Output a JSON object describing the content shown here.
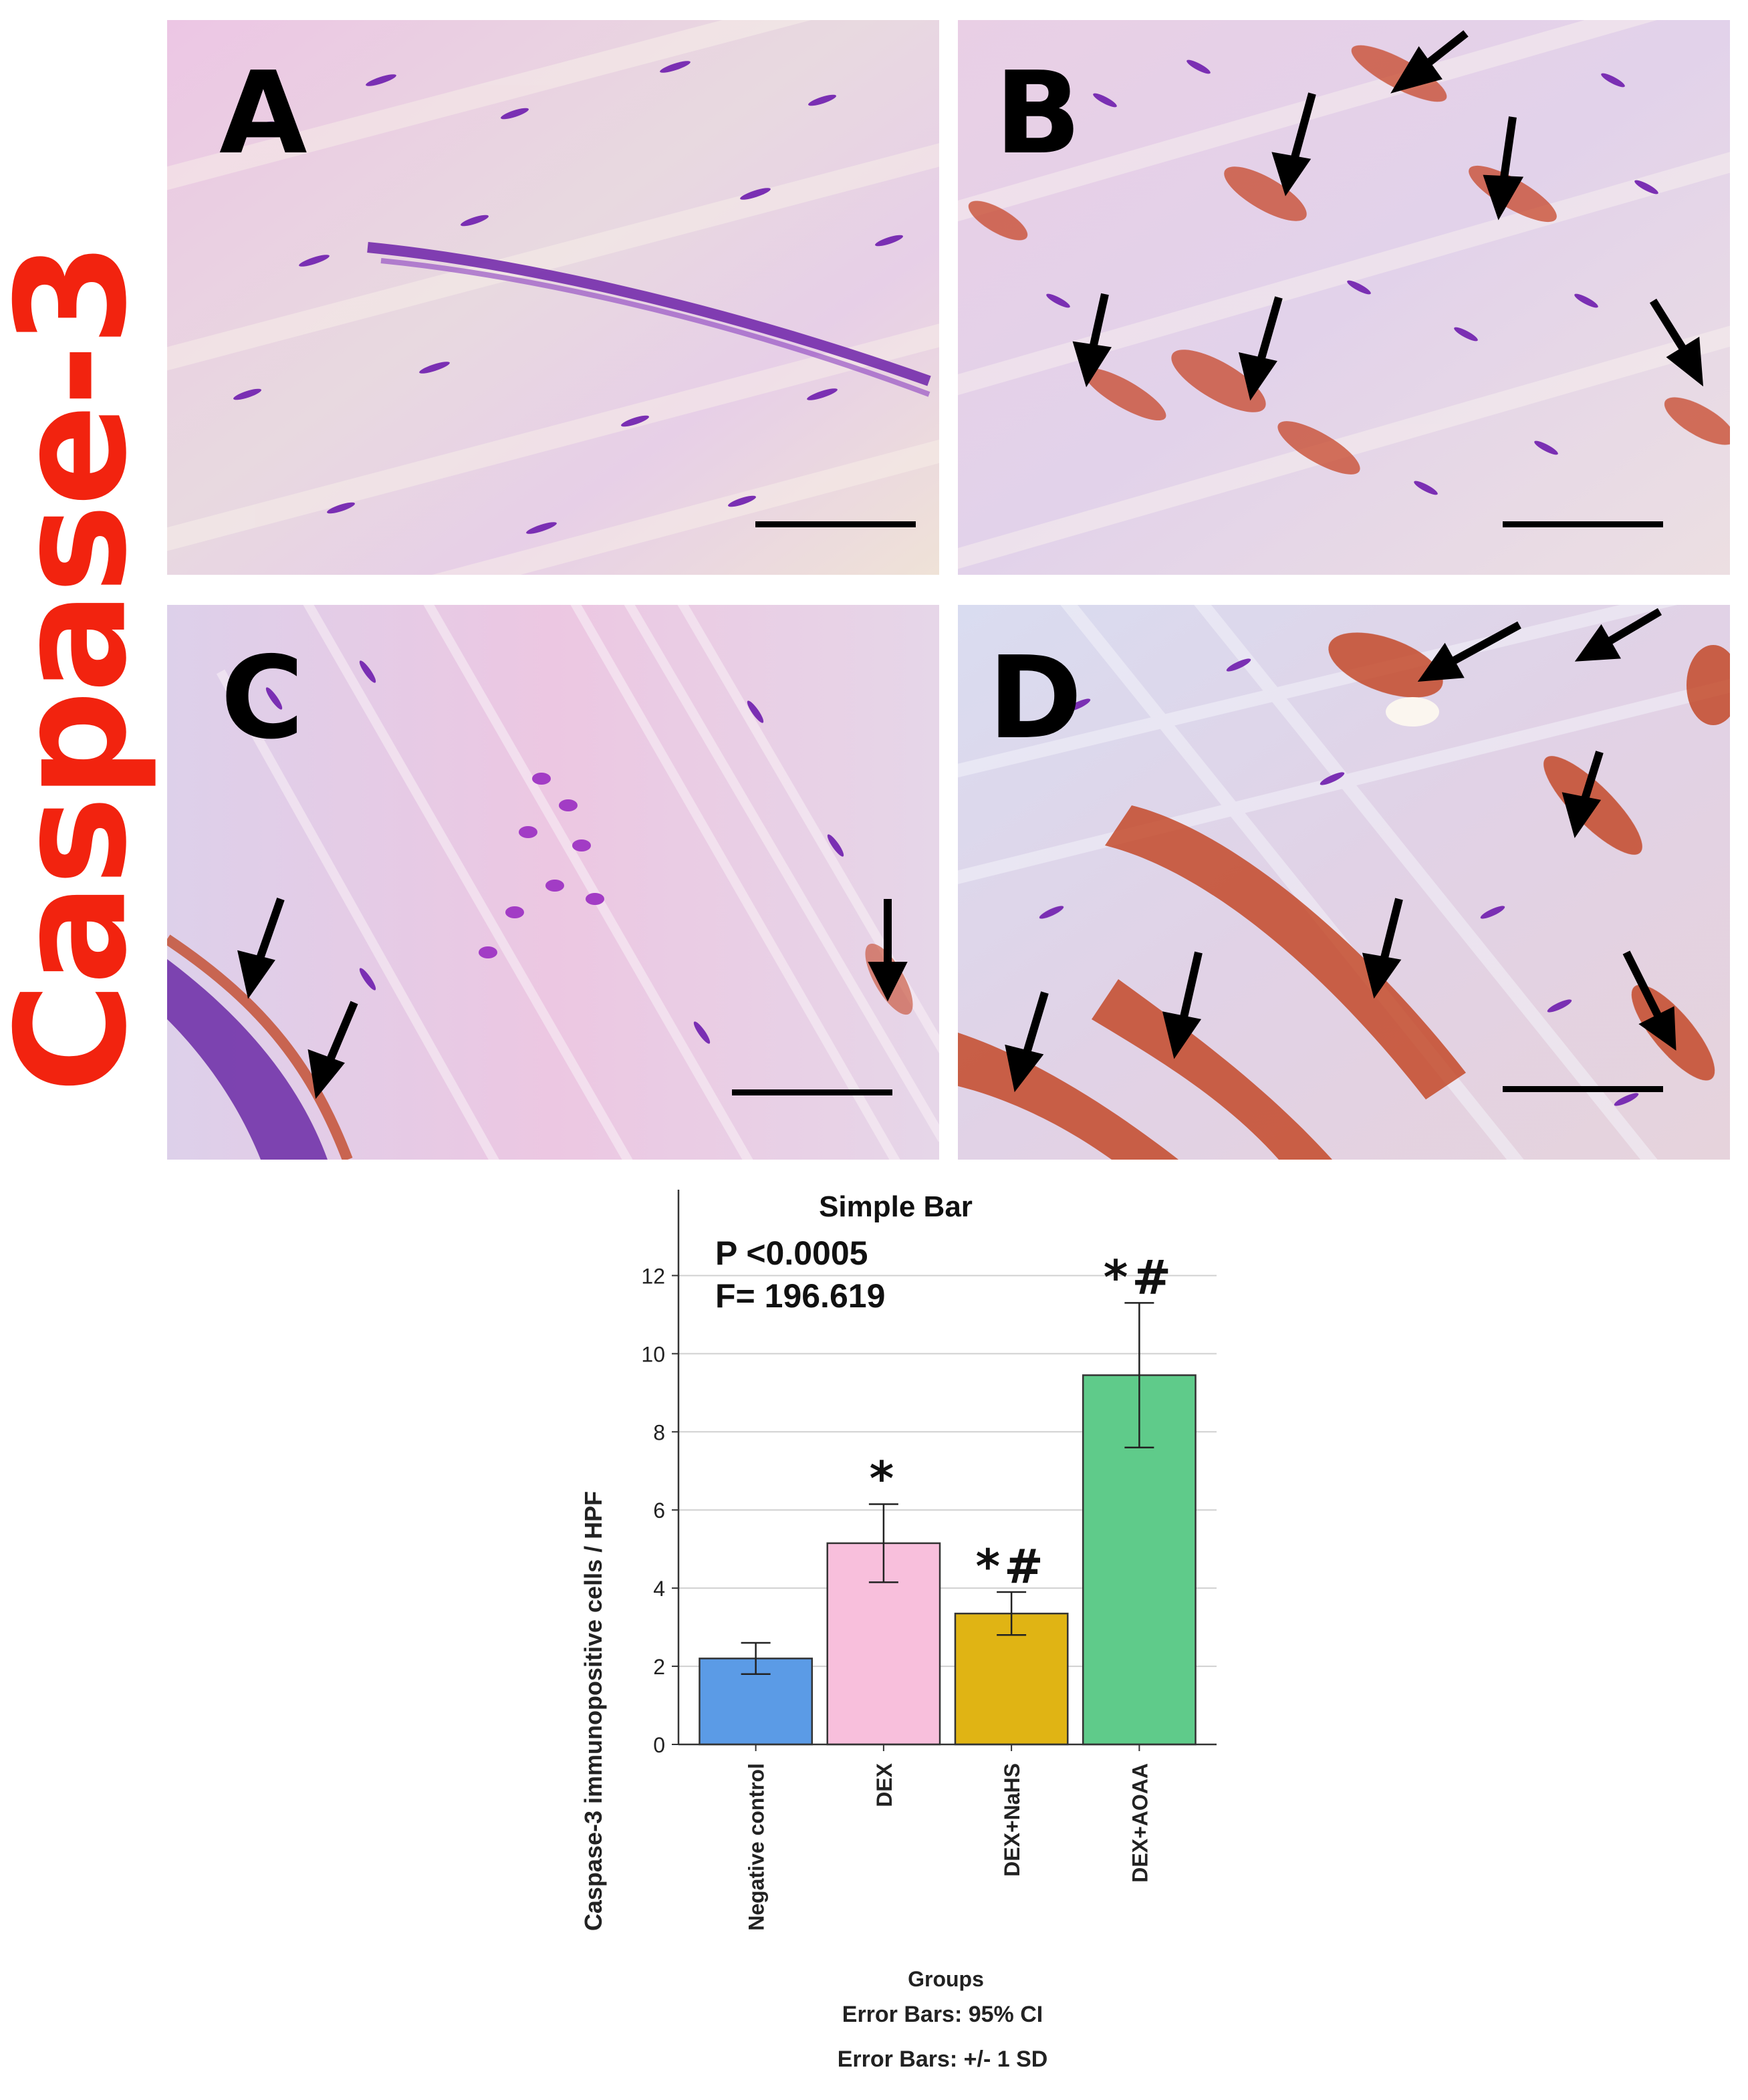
{
  "figure": {
    "side_label": "Caspase-3",
    "panels": [
      {
        "letter": "A"
      },
      {
        "letter": "B"
      },
      {
        "letter": "C"
      },
      {
        "letter": "D"
      }
    ]
  },
  "chart_data": {
    "type": "bar",
    "title": "Simple Bar",
    "ylabel": "Caspase-3 immunopositive cells / HPF",
    "xlabel": "Groups",
    "categories": [
      "Negative control",
      "DEX",
      "DEX+NaHS",
      "DEX+AOAA"
    ],
    "values": [
      2.2,
      5.15,
      3.35,
      9.45
    ],
    "error_low": [
      1.8,
      4.15,
      2.8,
      7.6
    ],
    "error_high": [
      2.6,
      6.15,
      3.9,
      11.3
    ],
    "significance": [
      "",
      "*",
      "*#",
      "*#"
    ],
    "bar_colors": [
      "#5b9be6",
      "#f8bfdc",
      "#e0b414",
      "#5fcb8a"
    ],
    "ylim": [
      0,
      13
    ],
    "yticks": [
      "0",
      "2",
      "4",
      "6",
      "8",
      "10",
      "12"
    ],
    "grid": true,
    "stats": [
      "P <0.0005",
      "F= 196.619"
    ],
    "footnotes": [
      "Error Bars: 95% CI",
      "Error Bars: +/- 1 SD"
    ]
  }
}
